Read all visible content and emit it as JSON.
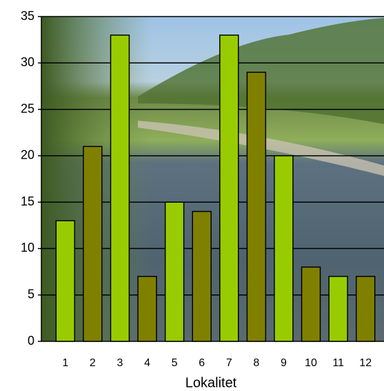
{
  "chart_data": {
    "type": "bar",
    "x_label": "Lokalitet",
    "categories": [
      "1",
      "2",
      "3",
      "4",
      "5",
      "6",
      "7",
      "8",
      "9",
      "10",
      "11",
      "12"
    ],
    "values": [
      13,
      21,
      33,
      7,
      15,
      14,
      33,
      29,
      20,
      8,
      7,
      7
    ],
    "colors": [
      "#99cc00",
      "#808000",
      "#99cc00",
      "#808000",
      "#99cc00",
      "#808000",
      "#99cc00",
      "#808000",
      "#99cc00",
      "#808000",
      "#99cc00",
      "#808000"
    ],
    "ylim": [
      0,
      35
    ],
    "yticks": [
      0,
      5,
      10,
      15,
      20,
      25,
      30,
      35
    ],
    "grid": true
  }
}
